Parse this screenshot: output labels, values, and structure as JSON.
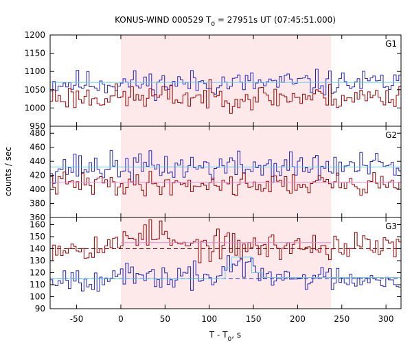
{
  "chart_data": {
    "type": "line",
    "title": "KONUS-WIND 000529 T",
    "title_sub": "0",
    "title_rest": " = 27951s UT (07:45:51.000)",
    "xlabel": "T - T",
    "xlabel_sub": "0",
    "xlabel_rest": ", s",
    "ylabel": "counts / sec",
    "xlim": [
      -80,
      317
    ],
    "xticks": [
      -50,
      0,
      50,
      100,
      150,
      200,
      250,
      300
    ],
    "bin_width": 2.944,
    "highlight_interval": [
      0,
      238
    ],
    "colors": {
      "blue": "#2222bb",
      "darkred": "#990000",
      "highlight": "#fde8ea",
      "cyan": "#66ccee",
      "pink": "#ee88cc"
    },
    "panels": [
      {
        "label": "G1",
        "ylim": [
          950,
          1200
        ],
        "yticks": [
          950,
          1000,
          1050,
          1100,
          1150,
          1200
        ],
        "series": [
          {
            "color": "blue",
            "mean": 1068,
            "amp": 30,
            "seed": 11
          },
          {
            "color": "darkred",
            "mean": 1030,
            "amp": 30,
            "seed": 23
          }
        ],
        "ref_lines": [
          {
            "color": "cyan",
            "y": 1070,
            "from": -80,
            "to": 317,
            "dash": false
          }
        ],
        "segments": []
      },
      {
        "label": "G2",
        "ylim": [
          360,
          490
        ],
        "yticks": [
          360,
          380,
          400,
          420,
          440,
          460,
          480
        ],
        "series": [
          {
            "color": "blue",
            "mean": 432,
            "amp": 18,
            "seed": 37
          },
          {
            "color": "darkred",
            "mean": 408,
            "amp": 14,
            "seed": 41
          }
        ],
        "ref_lines": [
          {
            "color": "cyan",
            "y": 432,
            "from": -80,
            "to": 317,
            "dash": false
          },
          {
            "color": "pink",
            "y": 410,
            "from": -80,
            "to": 317,
            "dash": false
          }
        ],
        "segments": []
      },
      {
        "label": "G3",
        "ylim": [
          90,
          166
        ],
        "yticks": [
          90,
          100,
          110,
          120,
          130,
          140,
          150,
          160
        ],
        "series": [
          {
            "color": "darkred",
            "mean": 142,
            "amp": 10,
            "seed": 53,
            "bump_start": 0,
            "bump_end": 55,
            "bump": 10
          },
          {
            "color": "blue",
            "mean": 116,
            "amp": 9,
            "seed": 67,
            "bump_start": 110,
            "bump_end": 150,
            "bump": 10
          }
        ],
        "ref_lines": [
          {
            "color": "darkred",
            "y": 140,
            "from": -80,
            "to": 317,
            "dash": true
          },
          {
            "color": "blue",
            "y": 115,
            "from": -80,
            "to": 317,
            "dash": true
          },
          {
            "color": "pink",
            "y": 145,
            "from": 0,
            "to": 238,
            "dash": false
          }
        ],
        "segments": [
          {
            "color": "cyan",
            "from": -80,
            "to": 118,
            "y": 115
          },
          {
            "color": "cyan",
            "from": 118,
            "to": 125,
            "y": 124
          },
          {
            "color": "cyan",
            "from": 125,
            "to": 148,
            "y": 133
          },
          {
            "color": "cyan",
            "from": 148,
            "to": 160,
            "y": 120
          },
          {
            "color": "cyan",
            "from": 160,
            "to": 317,
            "y": 116
          }
        ]
      }
    ]
  }
}
